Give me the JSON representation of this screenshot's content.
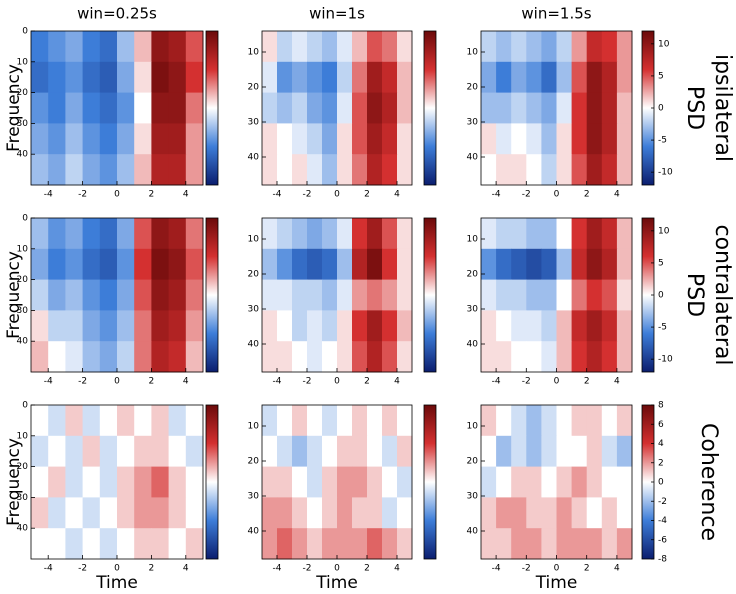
{
  "chart_data": [
    {
      "type": "heatmap",
      "title": "win=0.25s",
      "ylabel": "Frequency",
      "xlim": [
        -5,
        5
      ],
      "xticks": [
        -4,
        -2,
        0,
        2,
        4
      ],
      "ylim": [
        0,
        50
      ],
      "yticks": [
        0,
        10,
        20,
        30,
        40
      ],
      "zlim": [
        -12,
        12
      ],
      "z": [
        [
          -6,
          -5,
          -4,
          -6,
          -7,
          -3,
          2,
          10,
          9,
          5
        ],
        [
          -7,
          -6,
          -5,
          -7,
          -8,
          -4,
          1,
          11,
          10,
          6
        ],
        [
          -5,
          -6,
          -4,
          -6,
          -7,
          -5,
          0,
          10,
          10,
          4
        ],
        [
          -4,
          -5,
          -3,
          -5,
          -6,
          -4,
          1,
          9,
          9,
          3
        ],
        [
          -3,
          -4,
          -2,
          -4,
          -5,
          -3,
          2,
          8,
          8,
          3
        ]
      ]
    },
    {
      "type": "heatmap",
      "title": "win=1s",
      "xlim": [
        -5,
        5
      ],
      "xticks": [
        -4,
        -2,
        0,
        2,
        4
      ],
      "ylim": [
        4,
        48
      ],
      "yticks": [
        10,
        20,
        30,
        40
      ],
      "zlim": [
        -12,
        12
      ],
      "z": [
        [
          1,
          -2,
          -1,
          -2,
          -3,
          -1,
          2,
          5,
          4,
          1
        ],
        [
          -1,
          -5,
          -4,
          -5,
          -6,
          -2,
          4,
          9,
          7,
          2
        ],
        [
          -2,
          -3,
          -2,
          -4,
          -5,
          -1,
          5,
          10,
          8,
          2
        ],
        [
          1,
          0,
          -1,
          -2,
          -4,
          1,
          5,
          9,
          7,
          1
        ],
        [
          1,
          0,
          1,
          -1,
          -3,
          1,
          4,
          8,
          6,
          1
        ]
      ]
    },
    {
      "type": "heatmap",
      "title": "win=1.5s",
      "row_label": [
        "PSD",
        "ipsilateral"
      ],
      "xlim": [
        -5,
        5
      ],
      "xticks": [
        -4,
        -2,
        0,
        2,
        4
      ],
      "ylim": [
        4,
        48
      ],
      "yticks": [
        10,
        20,
        30,
        40
      ],
      "zlim": [
        -12,
        12
      ],
      "zticks": [
        10,
        5,
        0,
        -5,
        -10
      ],
      "z": [
        [
          -2,
          -3,
          -2,
          -3,
          -4,
          -2,
          3,
          7,
          6,
          3
        ],
        [
          -4,
          -6,
          -4,
          -5,
          -7,
          -3,
          5,
          10,
          8,
          3
        ],
        [
          -3,
          -3,
          -2,
          -3,
          -4,
          -1,
          6,
          10,
          8,
          2
        ],
        [
          1,
          -1,
          0,
          -1,
          -3,
          1,
          6,
          10,
          8,
          2
        ],
        [
          0,
          1,
          1,
          0,
          -2,
          1,
          5,
          9,
          7,
          2
        ]
      ]
    },
    {
      "type": "heatmap",
      "ylabel": "Frequency",
      "xlim": [
        -5,
        5
      ],
      "xticks": [
        -4,
        -2,
        0,
        2,
        4
      ],
      "ylim": [
        0,
        50
      ],
      "yticks": [
        0,
        10,
        20,
        30,
        40
      ],
      "zlim": [
        -12,
        12
      ],
      "z": [
        [
          -3,
          -5,
          -4,
          -6,
          -7,
          -4,
          5,
          10,
          9,
          4
        ],
        [
          -4,
          -6,
          -5,
          -7,
          -8,
          -5,
          6,
          11,
          10,
          5
        ],
        [
          -2,
          -4,
          -3,
          -5,
          -6,
          -4,
          5,
          10,
          9,
          4
        ],
        [
          1,
          -2,
          -2,
          -4,
          -5,
          -3,
          4,
          9,
          8,
          3
        ],
        [
          2,
          0,
          -1,
          -3,
          -4,
          -2,
          4,
          8,
          7,
          2
        ]
      ]
    },
    {
      "type": "heatmap",
      "xlim": [
        -5,
        5
      ],
      "xticks": [
        -4,
        -2,
        0,
        2,
        4
      ],
      "ylim": [
        4,
        48
      ],
      "yticks": [
        10,
        20,
        30,
        40
      ],
      "zlim": [
        -12,
        12
      ],
      "z": [
        [
          -1,
          -2,
          -3,
          -4,
          -3,
          -1,
          6,
          9,
          5,
          1
        ],
        [
          -3,
          -5,
          -7,
          -8,
          -7,
          -3,
          8,
          11,
          6,
          1
        ],
        [
          -1,
          -1,
          -2,
          -2,
          -3,
          -1,
          3,
          4,
          3,
          1
        ],
        [
          1,
          0,
          -2,
          -1,
          -2,
          1,
          6,
          9,
          6,
          2
        ],
        [
          1,
          1,
          0,
          -1,
          0,
          1,
          5,
          8,
          5,
          1
        ]
      ]
    },
    {
      "type": "heatmap",
      "row_label": [
        "PSD",
        "contralateral"
      ],
      "xlim": [
        -5,
        5
      ],
      "xticks": [
        -4,
        -2,
        0,
        2,
        4
      ],
      "ylim": [
        4,
        48
      ],
      "yticks": [
        10,
        20,
        30,
        40
      ],
      "zlim": [
        -12,
        12
      ],
      "zticks": [
        10,
        5,
        0,
        -5,
        -10
      ],
      "z": [
        [
          -1,
          -2,
          -2,
          -3,
          -3,
          0,
          6,
          9,
          7,
          2
        ],
        [
          -5,
          -7,
          -8,
          -9,
          -8,
          -3,
          7,
          10,
          8,
          2
        ],
        [
          -1,
          -2,
          -2,
          -3,
          -3,
          0,
          4,
          6,
          5,
          1
        ],
        [
          1,
          0,
          -1,
          -1,
          -2,
          2,
          7,
          9,
          7,
          2
        ],
        [
          1,
          1,
          0,
          0,
          -1,
          2,
          6,
          8,
          6,
          2
        ]
      ]
    },
    {
      "type": "heatmap",
      "ylabel": "Frequency",
      "xlabel": "Time",
      "xlim": [
        -5,
        5
      ],
      "xticks": [
        -4,
        -2,
        0,
        2,
        4
      ],
      "ylim": [
        0,
        50
      ],
      "yticks": [
        0,
        10,
        20,
        30,
        40
      ],
      "zlim": [
        -8,
        8
      ],
      "z": [
        [
          0,
          -1,
          1,
          -1,
          0,
          1,
          0,
          1,
          -1,
          0
        ],
        [
          -1,
          0,
          -1,
          1,
          -1,
          0,
          1,
          1,
          0,
          -1
        ],
        [
          0,
          1,
          -1,
          0,
          -1,
          1,
          2,
          3,
          1,
          0
        ],
        [
          1,
          -1,
          0,
          -1,
          0,
          1,
          2,
          2,
          1,
          0
        ],
        [
          0,
          0,
          -1,
          0,
          -1,
          0,
          1,
          1,
          0,
          1
        ]
      ]
    },
    {
      "type": "heatmap",
      "xlabel": "Time",
      "xlim": [
        -5,
        5
      ],
      "xticks": [
        -4,
        -2,
        0,
        2,
        4
      ],
      "ylim": [
        4,
        48
      ],
      "yticks": [
        10,
        20,
        30,
        40
      ],
      "zlim": [
        -8,
        8
      ],
      "z": [
        [
          -1,
          0,
          1,
          0,
          -1,
          0,
          1,
          0,
          1,
          0
        ],
        [
          0,
          -1,
          -2,
          -1,
          0,
          1,
          1,
          0,
          -1,
          1
        ],
        [
          1,
          1,
          0,
          -1,
          1,
          2,
          2,
          1,
          0,
          -1
        ],
        [
          2,
          2,
          1,
          0,
          1,
          2,
          1,
          1,
          -1,
          0
        ],
        [
          2,
          3,
          2,
          1,
          2,
          2,
          2,
          3,
          2,
          1
        ]
      ]
    },
    {
      "type": "heatmap",
      "xlabel": "Time",
      "row_label": [
        "Coherence"
      ],
      "xlim": [
        -5,
        5
      ],
      "xticks": [
        -4,
        -2,
        0,
        2,
        4
      ],
      "ylim": [
        4,
        48
      ],
      "yticks": [
        10,
        20,
        30,
        40
      ],
      "zlim": [
        -8,
        8
      ],
      "zticks": [
        8,
        6,
        4,
        2,
        0,
        -2,
        -4,
        -6,
        -8
      ],
      "z": [
        [
          1,
          0,
          -1,
          -2,
          -1,
          0,
          1,
          1,
          0,
          1
        ],
        [
          0,
          -2,
          -1,
          -2,
          -1,
          0,
          0,
          1,
          -1,
          -2
        ],
        [
          -1,
          0,
          1,
          1,
          0,
          1,
          2,
          1,
          0,
          0
        ],
        [
          1,
          2,
          2,
          1,
          1,
          2,
          1,
          0,
          1,
          0
        ],
        [
          1,
          1,
          2,
          2,
          1,
          2,
          2,
          2,
          1,
          2
        ]
      ]
    }
  ]
}
